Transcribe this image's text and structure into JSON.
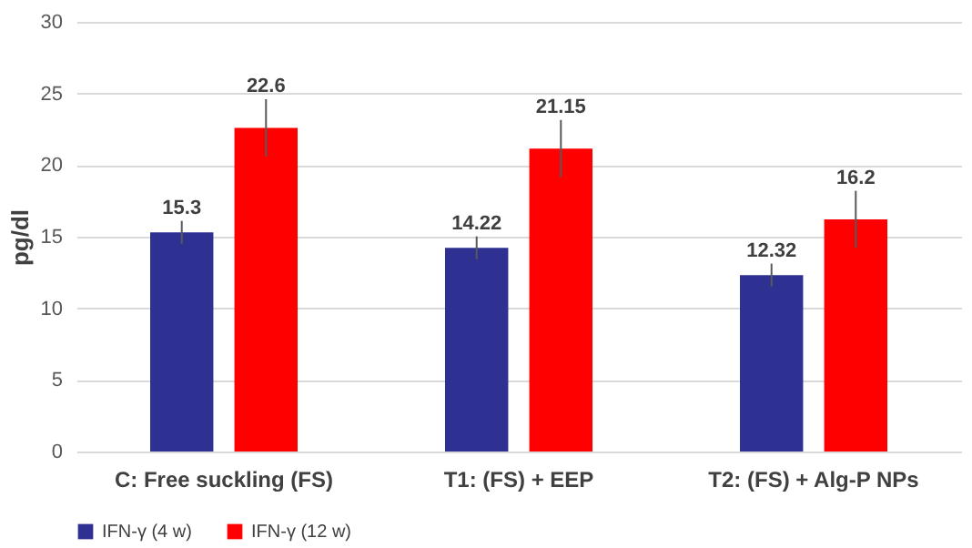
{
  "chart_data": {
    "type": "bar",
    "ylabel": "pg/dl",
    "categories": [
      "C: Free suckling (FS)",
      "T1: (FS) + EEP",
      "T2: (FS) + Alg-P NPs"
    ],
    "series": [
      {
        "name": "IFN-γ (4 w)",
        "color": "#2e3192",
        "values": [
          15.3,
          14.22,
          12.32
        ],
        "errors": [
          0.8,
          0.8,
          0.8
        ]
      },
      {
        "name": "IFN-γ (12 w)",
        "color": "#ff0000",
        "values": [
          22.6,
          21.15,
          16.2
        ],
        "errors": [
          2,
          2,
          2
        ]
      }
    ],
    "ylim": [
      0,
      30
    ],
    "yticks": [
      0,
      5,
      10,
      15,
      20,
      25,
      30
    ],
    "grid": "y",
    "legend": "bottom",
    "data_labels": true
  }
}
